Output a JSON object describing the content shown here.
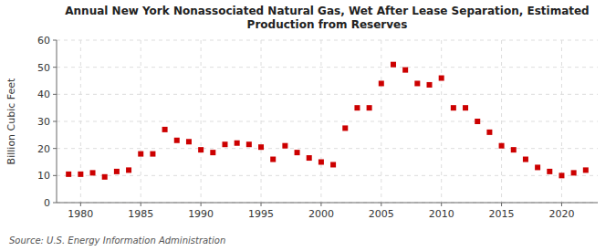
{
  "chart_data": {
    "type": "scatter",
    "title": "Annual New York Nonassociated Natural Gas, Wet After Lease Separation, Estimated\nProduction from Reserves",
    "y_label": "Billion Cubic Feet",
    "annotations": [
      "Source: U.S. Energy Information Administration"
    ],
    "x": [
      1979,
      1980,
      1981,
      1982,
      1983,
      1984,
      1985,
      1986,
      1987,
      1988,
      1989,
      1990,
      1991,
      1992,
      1993,
      1994,
      1995,
      1996,
      1997,
      1998,
      1999,
      2000,
      2001,
      2002,
      2003,
      2004,
      2005,
      2006,
      2007,
      2008,
      2009,
      2010,
      2011,
      2012,
      2013,
      2014,
      2015,
      2016,
      2017,
      2018,
      2019,
      2020,
      2021,
      2022
    ],
    "values": [
      10.5,
      10.5,
      11.0,
      9.5,
      11.5,
      12.0,
      18.0,
      18.0,
      27.0,
      23.0,
      22.5,
      19.5,
      18.5,
      21.5,
      22.0,
      21.5,
      20.5,
      16.0,
      21.0,
      18.5,
      16.5,
      15.0,
      14.0,
      27.5,
      35.0,
      35.0,
      44.0,
      51.0,
      49.0,
      44.0,
      43.5,
      46.0,
      35.0,
      35.0,
      30.0,
      26.0,
      21.0,
      19.5,
      16.0,
      13.0,
      11.5,
      10.0,
      11.0,
      12.0
    ],
    "color": "#cc0000",
    "marker": "square",
    "xlim": [
      1978,
      2023
    ],
    "ylim": [
      0,
      60
    ],
    "xticks": [
      1980,
      1985,
      1990,
      1995,
      2000,
      2005,
      2010,
      2015,
      2020
    ],
    "yticks": [
      0,
      10,
      20,
      30,
      40,
      50,
      60
    ],
    "grid": true
  }
}
